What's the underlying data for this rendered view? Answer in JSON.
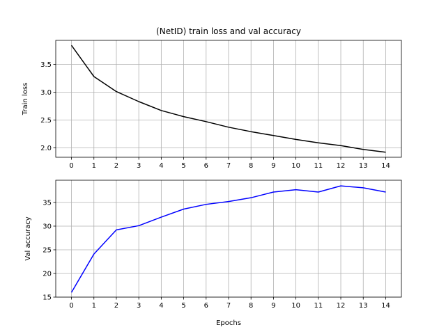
{
  "chart_data": [
    {
      "type": "line",
      "title": "(NetID) train loss and val accuracy",
      "xlabel": "",
      "ylabel": "Train loss",
      "x": [
        0,
        1,
        2,
        3,
        4,
        5,
        6,
        7,
        8,
        9,
        10,
        11,
        12,
        13,
        14
      ],
      "series": [
        {
          "values": [
            3.84,
            3.28,
            3.01,
            2.83,
            2.67,
            2.56,
            2.47,
            2.37,
            2.29,
            2.22,
            2.15,
            2.09,
            2.04,
            1.97,
            1.92
          ],
          "color": "#000000"
        }
      ],
      "xlim": [
        -0.7,
        14.7
      ],
      "ylim": [
        1.83,
        3.93
      ],
      "yticks": [
        2.0,
        2.5,
        3.0,
        3.5
      ],
      "ytick_labels": [
        "2.0",
        "2.5",
        "3.0",
        "3.5"
      ],
      "grid": true
    },
    {
      "type": "line",
      "title": "",
      "xlabel": "Epochs",
      "ylabel": "Val accuracy",
      "x": [
        0,
        1,
        2,
        3,
        4,
        5,
        6,
        7,
        8,
        9,
        10,
        11,
        12,
        13,
        14
      ],
      "series": [
        {
          "values": [
            16.0,
            24.1,
            29.2,
            30.1,
            31.9,
            33.6,
            34.6,
            35.2,
            36.0,
            37.2,
            37.7,
            37.2,
            38.5,
            38.1,
            37.2
          ],
          "color": "#0000ff"
        }
      ],
      "xlim": [
        -0.7,
        14.7
      ],
      "ylim": [
        15.0,
        39.7
      ],
      "yticks": [
        15,
        20,
        25,
        30,
        35
      ],
      "ytick_labels": [
        "15",
        "20",
        "25",
        "30",
        "35"
      ],
      "grid": true
    }
  ]
}
